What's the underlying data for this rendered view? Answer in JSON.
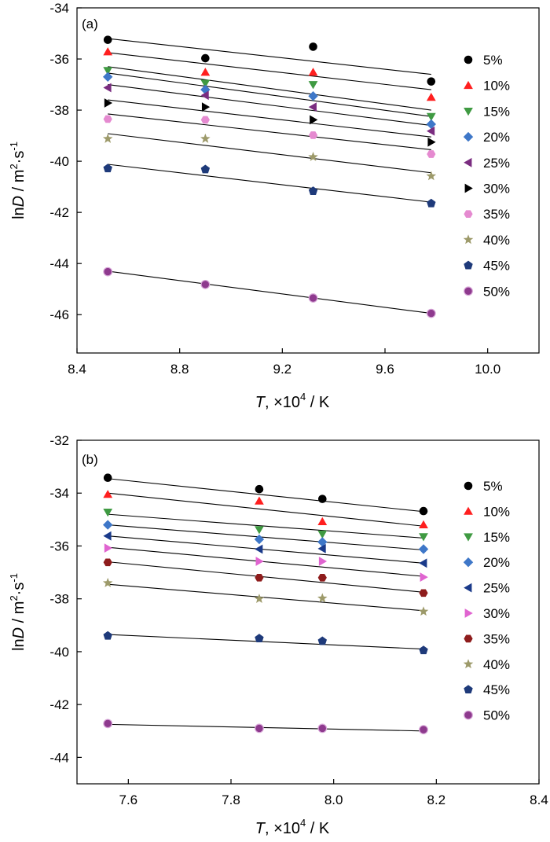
{
  "chart_data": [
    {
      "type": "scatter",
      "panel_label": "(a)",
      "ylabel_prefix": "ln",
      "ylabel_italic": "D",
      "ylabel_units": " / m",
      "ylabel_exp1": "2",
      "ylabel_mid": "·s",
      "ylabel_exp2": "-1",
      "xlabel_italic": "T",
      "xlabel_mid": ", ×10",
      "xlabel_exp": "4",
      "xlabel_units": " / K",
      "xlim": [
        8.4,
        10.2
      ],
      "ylim": [
        -47.5,
        -34
      ],
      "xticks": [
        8.4,
        8.8,
        9.2,
        9.6,
        10.0
      ],
      "xtick_labels": [
        "8.4",
        "8.8",
        "9.2",
        "9.6",
        "10.0"
      ],
      "yticks": [
        -34,
        -36,
        -38,
        -40,
        -42,
        -44,
        -46
      ],
      "ytick_labels": [
        "-34",
        "-36",
        "-38",
        "-40",
        "-42",
        "-44",
        "-46"
      ],
      "legend_position": "right",
      "x": [
        8.52,
        8.9,
        9.32,
        9.78
      ],
      "series": [
        {
          "name": "5%",
          "marker": "circle",
          "color": "#000000",
          "y": [
            -35.25,
            -35.97,
            -35.52,
            -36.88
          ],
          "fit": [
            -35.2,
            -36.6
          ]
        },
        {
          "name": "10%",
          "marker": "triangle-up",
          "color": "#ff1f1f",
          "y": [
            -35.72,
            -36.52,
            -36.52,
            -37.5
          ],
          "fit": [
            -35.75,
            -37.2
          ]
        },
        {
          "name": "15%",
          "marker": "triangle-down",
          "color": "#3f9a42",
          "y": [
            -36.45,
            -36.95,
            -37.0,
            -38.25
          ],
          "fit": [
            -36.3,
            -38.0
          ]
        },
        {
          "name": "20%",
          "marker": "diamond",
          "color": "#3e77c8",
          "y": [
            -36.7,
            -37.2,
            -37.45,
            -38.55
          ],
          "fit": [
            -36.55,
            -38.25
          ]
        },
        {
          "name": "25%",
          "marker": "triangle-left",
          "color": "#7a2c80",
          "y": [
            -37.12,
            -37.42,
            -37.88,
            -38.82
          ],
          "fit": [
            -37.0,
            -38.6
          ]
        },
        {
          "name": "30%",
          "marker": "triangle-right",
          "color": "#000000",
          "y": [
            -37.72,
            -37.88,
            -38.38,
            -39.25
          ],
          "fit": [
            -37.6,
            -39.05
          ]
        },
        {
          "name": "35%",
          "marker": "hexagon",
          "color": "#e58ad0",
          "y": [
            -38.35,
            -38.38,
            -38.98,
            -39.72
          ],
          "fit": [
            -38.15,
            -39.55
          ]
        },
        {
          "name": "40%",
          "marker": "star",
          "color": "#9d9a6a",
          "y": [
            -39.12,
            -39.12,
            -39.83,
            -40.58
          ],
          "fit": [
            -38.92,
            -40.45
          ]
        },
        {
          "name": "45%",
          "marker": "pentagon",
          "color": "#1e3a7a",
          "y": [
            -40.28,
            -40.32,
            -41.17,
            -41.65
          ],
          "fit": [
            -40.12,
            -41.6
          ]
        },
        {
          "name": "50%",
          "marker": "sphere",
          "color": "#8e3a8e",
          "y": [
            -44.32,
            -44.82,
            -45.35,
            -45.95
          ],
          "fit": [
            -44.3,
            -45.95
          ]
        }
      ]
    },
    {
      "type": "scatter",
      "panel_label": "(b)",
      "ylabel_prefix": "ln",
      "ylabel_italic": "D",
      "ylabel_units": " / m",
      "ylabel_exp1": "2",
      "ylabel_mid": "·s",
      "ylabel_exp2": "-1",
      "xlabel_italic": "T",
      "xlabel_mid": ", ×10",
      "xlabel_exp": "4",
      "xlabel_units": " / K",
      "xlim": [
        7.5,
        8.4
      ],
      "ylim": [
        -45,
        -32
      ],
      "xticks": [
        7.6,
        7.8,
        8.0,
        8.2,
        8.4
      ],
      "xtick_labels": [
        "7.6",
        "7.8",
        "8.0",
        "8.2",
        "8.4"
      ],
      "yticks": [
        -32,
        -34,
        -36,
        -38,
        -40,
        -42,
        -44
      ],
      "ytick_labels": [
        "-32",
        "-34",
        "-36",
        "-38",
        "-40",
        "-42",
        "-44"
      ],
      "legend_position": "right",
      "x": [
        7.56,
        7.855,
        7.978,
        8.175
      ],
      "series": [
        {
          "name": "5%",
          "marker": "circle",
          "color": "#000000",
          "y": [
            -33.42,
            -33.85,
            -34.22,
            -34.68
          ],
          "fit": [
            -33.45,
            -34.7
          ]
        },
        {
          "name": "10%",
          "marker": "triangle-up",
          "color": "#ff1f1f",
          "y": [
            -34.05,
            -34.3,
            -35.08,
            -35.2
          ],
          "fit": [
            -34.0,
            -35.25
          ]
        },
        {
          "name": "15%",
          "marker": "triangle-down",
          "color": "#3f9a42",
          "y": [
            -34.72,
            -35.38,
            -35.55,
            -35.65
          ],
          "fit": [
            -34.8,
            -35.7
          ]
        },
        {
          "name": "20%",
          "marker": "diamond",
          "color": "#3e77c8",
          "y": [
            -35.2,
            -35.75,
            -35.85,
            -36.12
          ],
          "fit": [
            -35.2,
            -36.15
          ]
        },
        {
          "name": "25%",
          "marker": "triangle-left",
          "color": "#1a3a8a",
          "y": [
            -35.62,
            -36.12,
            -36.1,
            -36.65
          ],
          "fit": [
            -35.62,
            -36.65
          ]
        },
        {
          "name": "30%",
          "marker": "triangle-right",
          "color": "#e064d0",
          "y": [
            -36.08,
            -36.58,
            -36.58,
            -37.18
          ],
          "fit": [
            -36.05,
            -37.15
          ]
        },
        {
          "name": "35%",
          "marker": "hexagon",
          "color": "#8e1c1c",
          "y": [
            -36.62,
            -37.2,
            -37.2,
            -37.78
          ],
          "fit": [
            -36.6,
            -37.75
          ]
        },
        {
          "name": "40%",
          "marker": "star",
          "color": "#9d9a6a",
          "y": [
            -37.4,
            -38.0,
            -37.98,
            -38.48
          ],
          "fit": [
            -37.45,
            -38.45
          ]
        },
        {
          "name": "45%",
          "marker": "pentagon",
          "color": "#1e3a7a",
          "y": [
            -39.4,
            -39.5,
            -39.6,
            -39.95
          ],
          "fit": [
            -39.35,
            -39.9
          ]
        },
        {
          "name": "50%",
          "marker": "sphere",
          "color": "#8e3a8e",
          "y": [
            -42.72,
            -42.9,
            -42.9,
            -42.95
          ],
          "fit": [
            -42.75,
            -43.0
          ]
        }
      ]
    }
  ]
}
